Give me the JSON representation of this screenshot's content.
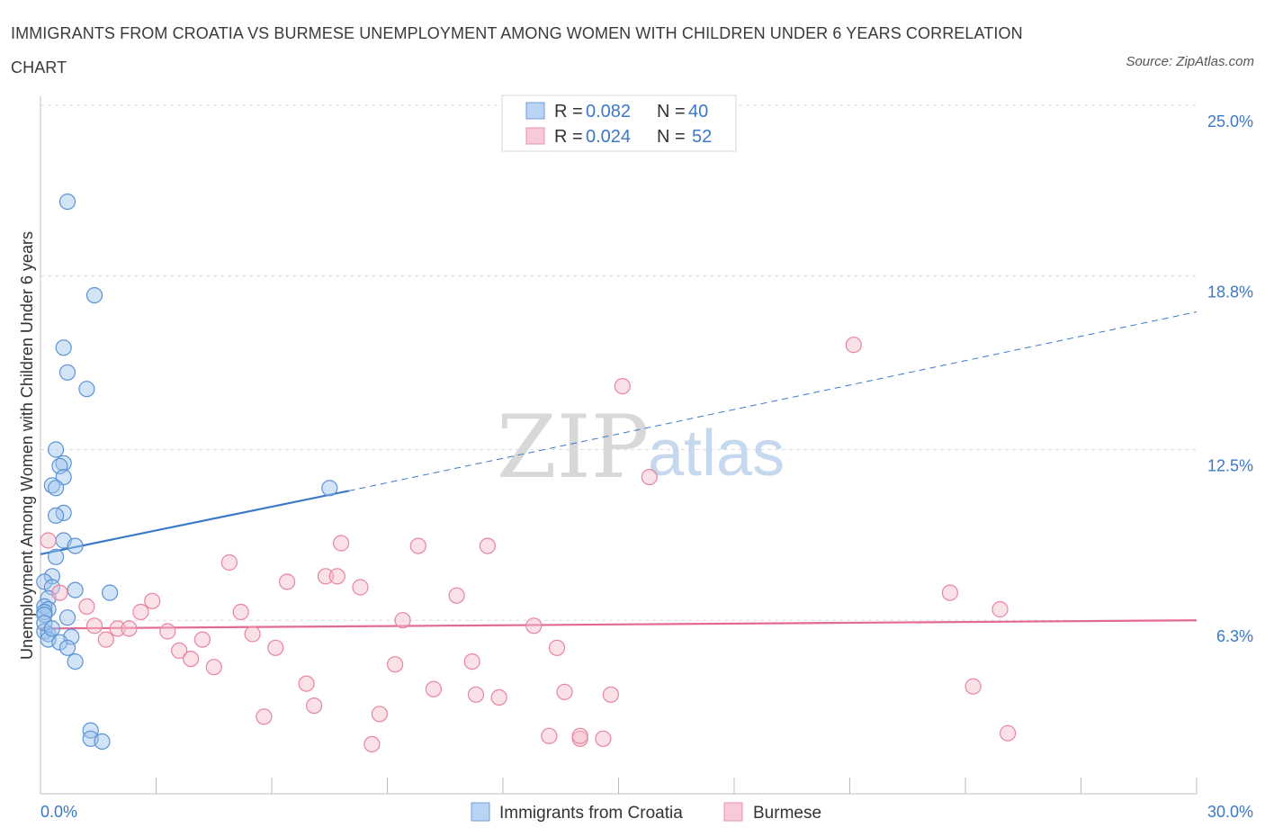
{
  "title": "IMMIGRANTS FROM CROATIA VS BURMESE UNEMPLOYMENT AMONG WOMEN WITH CHILDREN UNDER 6 YEARS CORRELATION CHART",
  "source": "Source: ZipAtlas.com",
  "watermark": {
    "zip": "ZIP",
    "atlas": "atlas"
  },
  "legend": {
    "rows": [
      {
        "r_label": "R =",
        "r_value": "0.082",
        "n_label": "N =",
        "n_value": "40"
      },
      {
        "r_label": "R =",
        "r_value": "0.024",
        "n_label": "N =",
        "n_value": "52"
      }
    ]
  },
  "chart_data": {
    "type": "scatter",
    "title": "IMMIGRANTS FROM CROATIA VS BURMESE UNEMPLOYMENT AMONG WOMEN WITH CHILDREN UNDER 6 YEARS CORRELATION CHART",
    "xlabel": "",
    "ylabel": "Unemployment Among Women with Children Under 6 years",
    "xlim": [
      0,
      30
    ],
    "ylim": [
      0,
      25
    ],
    "x_tick_labels": [
      "0.0%",
      "30.0%"
    ],
    "y_ticks": [
      6.3,
      12.5,
      18.8,
      25.0
    ],
    "y_tick_labels": [
      "6.3%",
      "12.5%",
      "18.8%",
      "25.0%"
    ],
    "grid": true,
    "legend_position": "top-center",
    "series": [
      {
        "name": "Immigrants from Croatia",
        "color": "#9ec3ee",
        "stroke": "#5b93d6",
        "r": 0.082,
        "n": 40,
        "trend": {
          "x0": 0,
          "y0": 8.7,
          "x1": 8,
          "y1": 11.0,
          "dashed_to_x": 30,
          "dashed_to_y": 17.5,
          "color": "#3a78c9"
        },
        "points": [
          [
            0.7,
            21.5
          ],
          [
            1.4,
            18.1
          ],
          [
            0.6,
            16.2
          ],
          [
            0.7,
            15.3
          ],
          [
            1.2,
            14.7
          ],
          [
            0.4,
            12.5
          ],
          [
            0.6,
            12.0
          ],
          [
            0.5,
            11.9
          ],
          [
            0.6,
            11.5
          ],
          [
            0.3,
            11.2
          ],
          [
            0.4,
            11.1
          ],
          [
            7.5,
            11.1
          ],
          [
            0.6,
            10.2
          ],
          [
            0.4,
            10.1
          ],
          [
            0.6,
            9.2
          ],
          [
            0.9,
            9.0
          ],
          [
            0.4,
            8.6
          ],
          [
            0.3,
            7.9
          ],
          [
            0.1,
            7.7
          ],
          [
            0.3,
            7.5
          ],
          [
            0.9,
            7.4
          ],
          [
            1.8,
            7.3
          ],
          [
            0.2,
            7.1
          ],
          [
            0.1,
            6.8
          ],
          [
            0.2,
            6.7
          ],
          [
            0.1,
            6.6
          ],
          [
            0.1,
            6.5
          ],
          [
            0.7,
            6.4
          ],
          [
            0.1,
            5.9
          ],
          [
            0.2,
            5.8
          ],
          [
            0.8,
            5.7
          ],
          [
            0.2,
            5.6
          ],
          [
            0.5,
            5.5
          ],
          [
            0.7,
            5.3
          ],
          [
            0.9,
            4.8
          ],
          [
            1.3,
            2.3
          ],
          [
            1.3,
            2.0
          ],
          [
            1.6,
            1.9
          ],
          [
            0.1,
            6.2
          ],
          [
            0.3,
            6.0
          ]
        ]
      },
      {
        "name": "Burmese",
        "color": "#f5bccd",
        "stroke": "#e8849f",
        "r": 0.024,
        "n": 52,
        "trend": {
          "x0": 0,
          "y0": 6.0,
          "x1": 30,
          "y1": 6.3,
          "color": "#e36a93"
        },
        "points": [
          [
            0.2,
            9.2
          ],
          [
            0.5,
            7.3
          ],
          [
            1.2,
            6.8
          ],
          [
            1.4,
            6.1
          ],
          [
            1.7,
            5.6
          ],
          [
            2.0,
            6.0
          ],
          [
            2.3,
            6.0
          ],
          [
            2.6,
            6.6
          ],
          [
            2.9,
            7.0
          ],
          [
            3.3,
            5.9
          ],
          [
            3.6,
            5.2
          ],
          [
            3.9,
            4.9
          ],
          [
            4.2,
            5.6
          ],
          [
            4.5,
            4.6
          ],
          [
            4.9,
            8.4
          ],
          [
            5.2,
            6.6
          ],
          [
            5.5,
            5.8
          ],
          [
            5.8,
            2.8
          ],
          [
            6.1,
            5.3
          ],
          [
            6.4,
            7.7
          ],
          [
            6.9,
            4.0
          ],
          [
            7.1,
            3.2
          ],
          [
            7.4,
            7.9
          ],
          [
            7.7,
            7.9
          ],
          [
            7.8,
            9.1
          ],
          [
            8.3,
            7.5
          ],
          [
            8.6,
            1.8
          ],
          [
            8.8,
            2.9
          ],
          [
            9.2,
            4.7
          ],
          [
            9.4,
            6.3
          ],
          [
            9.8,
            9.0
          ],
          [
            10.2,
            3.8
          ],
          [
            10.8,
            7.2
          ],
          [
            11.2,
            4.8
          ],
          [
            11.3,
            3.6
          ],
          [
            11.6,
            9.0
          ],
          [
            11.9,
            3.5
          ],
          [
            12.8,
            6.1
          ],
          [
            13.2,
            2.1
          ],
          [
            13.4,
            5.3
          ],
          [
            13.6,
            3.7
          ],
          [
            14.0,
            2.0
          ],
          [
            14.6,
            2.0
          ],
          [
            14.8,
            3.6
          ],
          [
            15.1,
            14.8
          ],
          [
            15.8,
            11.5
          ],
          [
            21.1,
            16.3
          ],
          [
            23.6,
            7.3
          ],
          [
            24.2,
            3.9
          ],
          [
            24.9,
            6.7
          ],
          [
            25.1,
            2.2
          ],
          [
            14.0,
            2.1
          ]
        ]
      }
    ]
  },
  "bottom_legend": [
    {
      "label": "Immigrants from Croatia"
    },
    {
      "label": "Burmese"
    }
  ]
}
